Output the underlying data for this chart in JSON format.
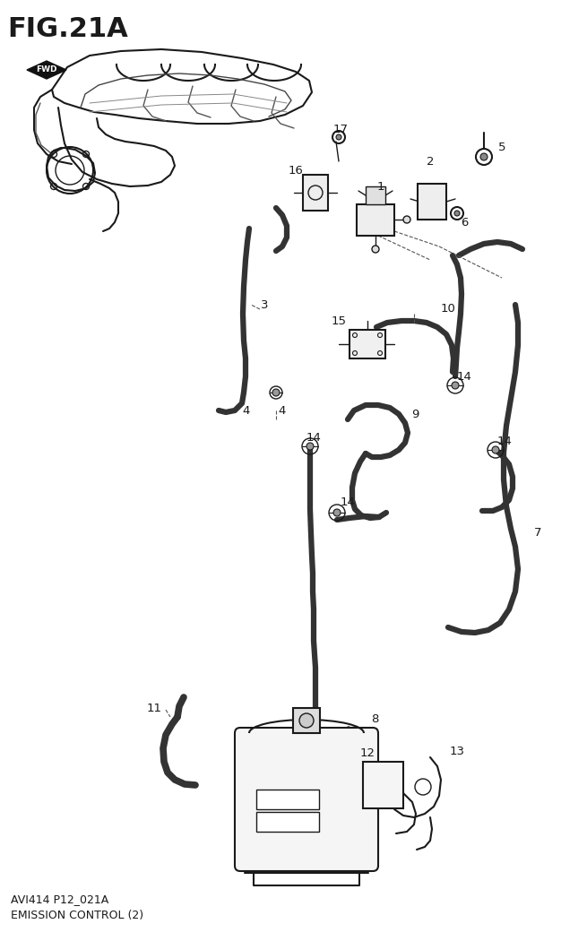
{
  "title": "FIG.21A",
  "subtitle1": "AVI414 P12_021A",
  "subtitle2": "EMISSION CONTROL (2)",
  "background_color": "#ffffff",
  "line_color": "#1a1a1a",
  "title_fontsize": 22,
  "label_fontsize": 9.5,
  "subtitle_fontsize": 9,
  "fig_width": 6.26,
  "fig_height": 10.5
}
